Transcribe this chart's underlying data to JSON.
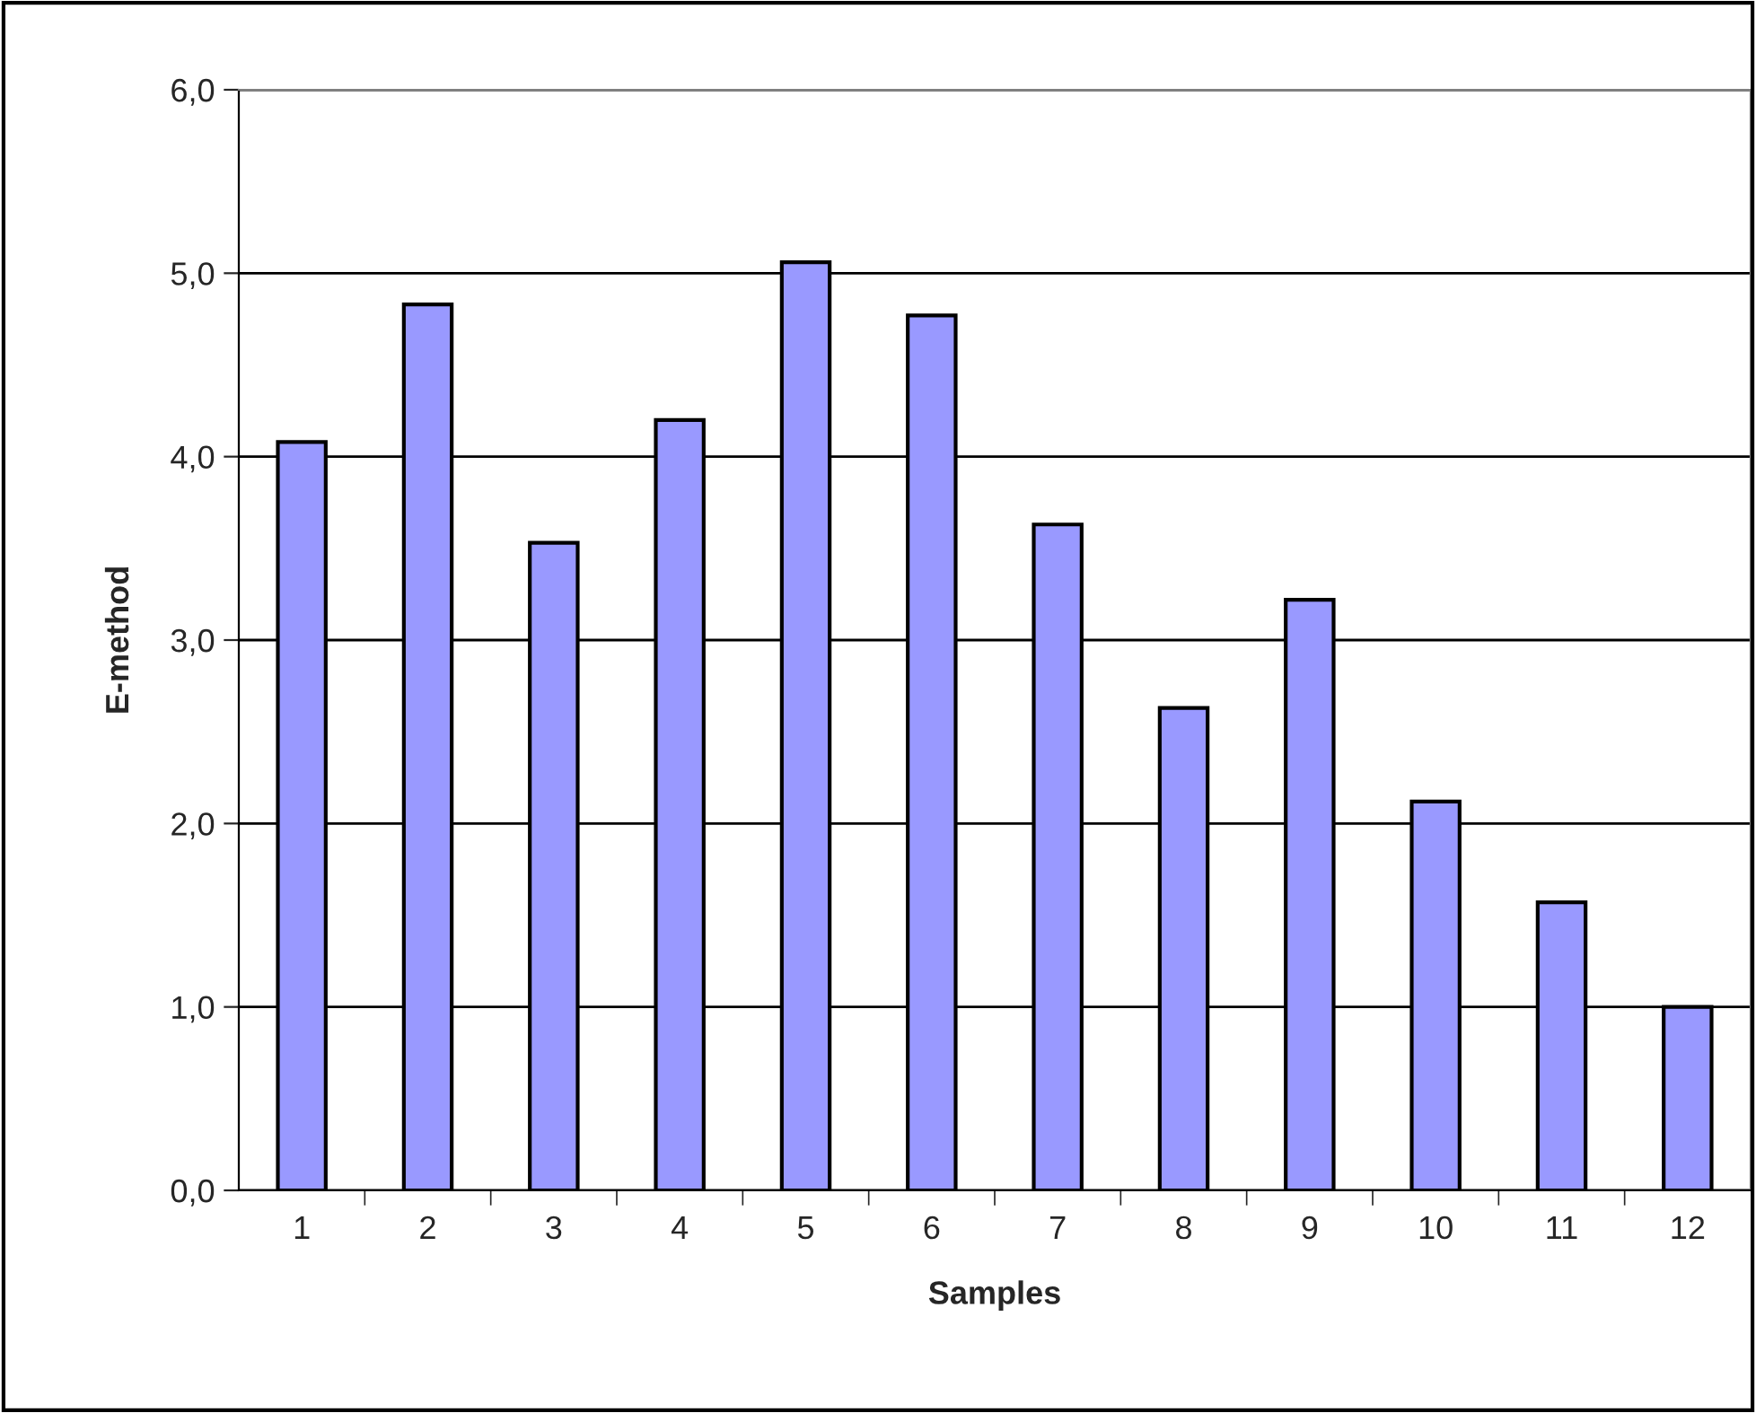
{
  "chart_data": {
    "type": "bar",
    "xlabel": "Samples",
    "ylabel": "E-method",
    "categories": [
      "1",
      "2",
      "3",
      "4",
      "5",
      "6",
      "7",
      "8",
      "9",
      "10",
      "11",
      "12"
    ],
    "values": [
      4.08,
      4.83,
      3.53,
      4.2,
      5.06,
      4.77,
      3.63,
      2.63,
      3.22,
      2.12,
      1.57,
      1.0
    ],
    "color": "#9999ff",
    "ylim": [
      0,
      6
    ],
    "yticks": [
      {
        "value": 0,
        "label": "0,0"
      },
      {
        "value": 1,
        "label": "1,0"
      },
      {
        "value": 2,
        "label": "2,0"
      },
      {
        "value": 3,
        "label": "3,0"
      },
      {
        "value": 4,
        "label": "4,0"
      },
      {
        "value": 5,
        "label": "5,0"
      },
      {
        "value": 6,
        "label": "6,0"
      }
    ],
    "grid": "y"
  }
}
